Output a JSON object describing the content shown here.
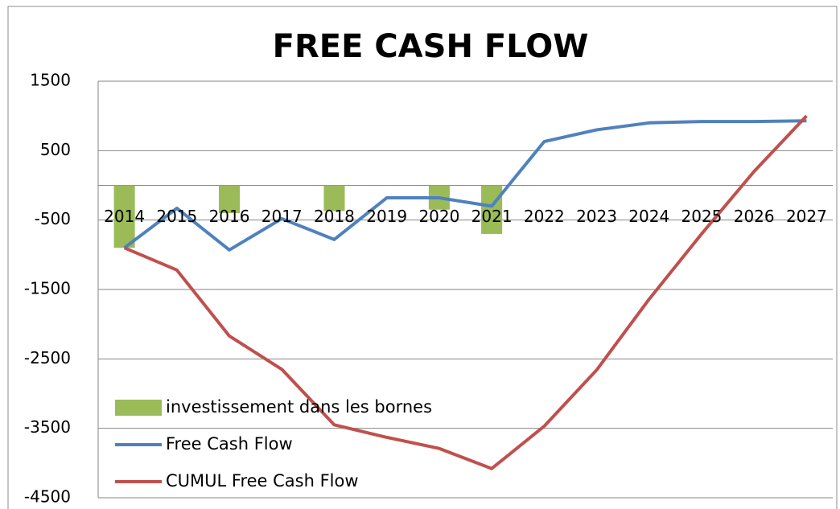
{
  "chart_data": {
    "type": "bar-line",
    "title": "FREE CASH FLOW",
    "categories": [
      "2014",
      "2015",
      "2016",
      "2017",
      "2018",
      "2019",
      "2020",
      "2021",
      "2022",
      "2023",
      "2024",
      "2025",
      "2026",
      "2027"
    ],
    "series": [
      {
        "name": "investissement dans les bornes",
        "type": "bar",
        "color": "#9bbb59",
        "values": [
          -900,
          0,
          -400,
          0,
          -370,
          0,
          -350,
          -700,
          0,
          0,
          0,
          0,
          0,
          0
        ]
      },
      {
        "name": "Free Cash Flow",
        "type": "line",
        "color": "#4f81bd",
        "values": [
          -900,
          -330,
          -930,
          -480,
          -780,
          -180,
          -180,
          -300,
          630,
          800,
          900,
          920,
          920,
          930
        ]
      },
      {
        "name": "CUMUL Free Cash Flow",
        "type": "line",
        "color": "#c0504d",
        "values": [
          -900,
          -1220,
          -2170,
          -2650,
          -3450,
          -3630,
          -3790,
          -4080,
          -3470,
          -2660,
          -1640,
          -700,
          200,
          1000
        ]
      }
    ],
    "ylim": [
      -4500,
      1500
    ],
    "yticks": [
      -4500,
      -3500,
      -2500,
      -1500,
      -500,
      500,
      1500
    ],
    "grid": true
  }
}
